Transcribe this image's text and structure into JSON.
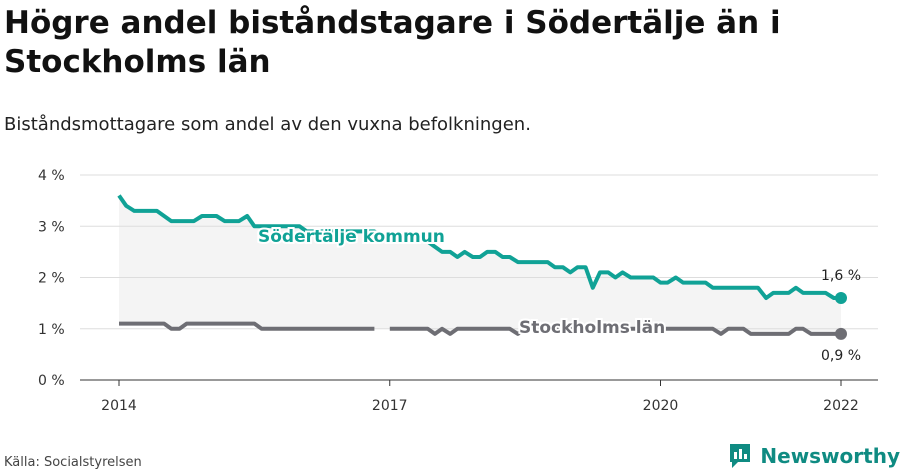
{
  "title": "Högre andel biståndstagare i Södertälje än i Stockholms län",
  "subtitle": "Biståndsmottagare som andel av den vuxna befolkningen.",
  "source": "Källa: Socialstyrelsen",
  "brand": "Newsworthy",
  "colors": {
    "sodertalje": "#10a296",
    "stockholm": "#6e6e74",
    "band": "#f4f4f4",
    "grid": "#dddddd",
    "brand": "#0f8b82"
  },
  "chart_data": {
    "type": "line",
    "y_ticks": [
      "0 %",
      "1 %",
      "2 %",
      "3 %",
      "4 %"
    ],
    "y_tick_values": [
      0,
      1,
      2,
      3,
      4
    ],
    "ylim": [
      0,
      4
    ],
    "x_ticks": [
      "2014",
      "2017",
      "2020",
      "2022"
    ],
    "x_tick_values": [
      2014,
      2017,
      2020,
      2022
    ],
    "xlim": [
      2014,
      2022
    ],
    "end_labels": {
      "sodertalje": "1,6 %",
      "stockholm": "0,9 %"
    },
    "series": [
      {
        "key": "sodertalje",
        "name": "Södertälje kommun",
        "x": [
          2014.0,
          2014.08,
          2014.17,
          2014.25,
          2014.33,
          2014.42,
          2014.5,
          2014.58,
          2014.67,
          2014.75,
          2014.83,
          2014.92,
          2015.0,
          2015.08,
          2015.17,
          2015.25,
          2015.33,
          2015.42,
          2015.5,
          2015.58,
          2015.67,
          2015.75,
          2015.83,
          2015.92,
          2016.0,
          2016.08,
          2016.17,
          2016.25,
          2016.33,
          2016.42,
          2016.5,
          2016.58,
          2016.67,
          2016.75,
          2016.83,
          2016.92,
          2017.0,
          2017.08,
          2017.17,
          2017.25,
          2017.33,
          2017.42,
          2017.5,
          2017.58,
          2017.67,
          2017.75,
          2017.83,
          2017.92,
          2018.0,
          2018.08,
          2018.17,
          2018.25,
          2018.33,
          2018.42,
          2018.5,
          2018.58,
          2018.67,
          2018.75,
          2018.83,
          2018.92,
          2019.0,
          2019.08,
          2019.17,
          2019.25,
          2019.33,
          2019.42,
          2019.5,
          2019.58,
          2019.67,
          2019.75,
          2019.83,
          2019.92,
          2020.0,
          2020.08,
          2020.17,
          2020.25,
          2020.33,
          2020.42,
          2020.5,
          2020.58,
          2020.67,
          2020.75,
          2020.83,
          2020.92,
          2021.0,
          2021.08,
          2021.17,
          2021.25,
          2021.33,
          2021.42,
          2021.5,
          2021.58,
          2021.67,
          2021.75,
          2021.83,
          2021.92,
          2022.0
        ],
        "values": [
          3.6,
          3.4,
          3.3,
          3.3,
          3.3,
          3.3,
          3.2,
          3.1,
          3.1,
          3.1,
          3.1,
          3.2,
          3.2,
          3.2,
          3.1,
          3.1,
          3.1,
          3.2,
          3.0,
          3.0,
          3.0,
          3.0,
          3.0,
          3.0,
          3.0,
          2.9,
          2.9,
          2.9,
          2.9,
          2.9,
          2.9,
          2.9,
          2.9,
          2.9,
          2.9,
          2.8,
          2.8,
          2.8,
          2.8,
          2.8,
          2.8,
          2.7,
          2.6,
          2.5,
          2.5,
          2.4,
          2.5,
          2.4,
          2.4,
          2.5,
          2.5,
          2.4,
          2.4,
          2.3,
          2.3,
          2.3,
          2.3,
          2.3,
          2.2,
          2.2,
          2.1,
          2.2,
          2.2,
          1.8,
          2.1,
          2.1,
          2.0,
          2.1,
          2.0,
          2.0,
          2.0,
          2.0,
          1.9,
          1.9,
          2.0,
          1.9,
          1.9,
          1.9,
          1.9,
          1.8,
          1.8,
          1.8,
          1.8,
          1.8,
          1.8,
          1.8,
          1.6,
          1.7,
          1.7,
          1.7,
          1.8,
          1.7,
          1.7,
          1.7,
          1.7,
          1.6,
          1.6
        ]
      },
      {
        "key": "stockholm",
        "name": "Stockholms län",
        "x": [
          2014.0,
          2014.08,
          2014.17,
          2014.25,
          2014.33,
          2014.42,
          2014.5,
          2014.58,
          2014.67,
          2014.75,
          2014.83,
          2014.92,
          2015.0,
          2015.08,
          2015.17,
          2015.25,
          2015.33,
          2015.42,
          2015.5,
          2015.58,
          2015.67,
          2015.75,
          2015.83,
          2015.92,
          2016.0,
          2016.08,
          2016.17,
          2016.25,
          2016.33,
          2016.42,
          2016.5,
          2016.58,
          2016.67,
          2016.75,
          2016.83,
          2016.92,
          2017.0,
          2017.08,
          2017.17,
          2017.25,
          2017.33,
          2017.42,
          2017.5,
          2017.58,
          2017.67,
          2017.75,
          2017.83,
          2017.92,
          2018.0,
          2018.08,
          2018.17,
          2018.25,
          2018.33,
          2018.42,
          2018.5,
          2018.58,
          2018.67,
          2018.75,
          2018.83,
          2018.92,
          2019.0,
          2019.08,
          2019.17,
          2019.25,
          2019.33,
          2019.42,
          2019.5,
          2019.58,
          2019.67,
          2019.75,
          2019.83,
          2019.92,
          2020.0,
          2020.08,
          2020.17,
          2020.25,
          2020.33,
          2020.42,
          2020.5,
          2020.58,
          2020.67,
          2020.75,
          2020.83,
          2020.92,
          2021.0,
          2021.08,
          2021.17,
          2021.25,
          2021.33,
          2021.42,
          2021.5,
          2021.58,
          2021.67,
          2021.75,
          2021.83,
          2021.92,
          2022.0
        ],
        "values": [
          1.1,
          1.1,
          1.1,
          1.1,
          1.1,
          1.1,
          1.1,
          1.0,
          1.0,
          1.1,
          1.1,
          1.1,
          1.1,
          1.1,
          1.1,
          1.1,
          1.1,
          1.1,
          1.1,
          1.0,
          1.0,
          1.0,
          1.0,
          1.0,
          1.0,
          1.0,
          1.0,
          1.0,
          1.0,
          1.0,
          1.0,
          1.0,
          1.0,
          1.0,
          1.0,
          null,
          1.0,
          1.0,
          1.0,
          1.0,
          1.0,
          1.0,
          0.9,
          1.0,
          0.9,
          1.0,
          1.0,
          1.0,
          1.0,
          1.0,
          1.0,
          1.0,
          1.0,
          0.9,
          1.0,
          1.0,
          1.0,
          1.0,
          1.0,
          1.0,
          1.0,
          1.0,
          1.0,
          1.0,
          1.0,
          1.0,
          1.0,
          1.0,
          1.0,
          1.0,
          1.0,
          1.0,
          1.0,
          1.0,
          1.0,
          1.0,
          1.0,
          1.0,
          1.0,
          1.0,
          0.9,
          1.0,
          1.0,
          1.0,
          0.9,
          0.9,
          0.9,
          0.9,
          0.9,
          0.9,
          1.0,
          1.0,
          0.9,
          0.9,
          0.9,
          0.9,
          0.9
        ]
      }
    ],
    "grid": true,
    "legend": "inline"
  }
}
